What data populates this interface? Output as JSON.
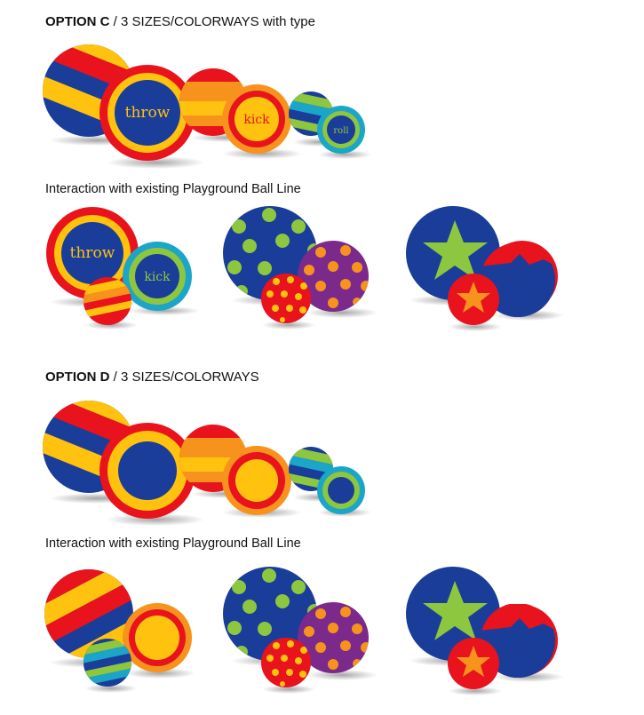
{
  "option_c": {
    "title_bold": "OPTION C",
    "title_rest": " / 3 SIZES/COLORWAYS with type",
    "ball_words": [
      "throw",
      "kick",
      "roll"
    ],
    "interaction_heading": "Interaction with existing Playground Ball Line",
    "interaction_words": [
      "throw",
      "kick"
    ]
  },
  "option_d": {
    "title_bold": "OPTION D",
    "title_rest": " / 3 SIZES/COLORWAYS",
    "interaction_heading": "Interaction with existing Playground Ball Line"
  },
  "palette": {
    "red": "#e8131d",
    "yellow": "#ffc20e",
    "blue": "#1a3d9a",
    "orange": "#f7931d",
    "green": "#8dc63f",
    "cyan": "#1ba5c8",
    "purple": "#7b2a8c"
  }
}
